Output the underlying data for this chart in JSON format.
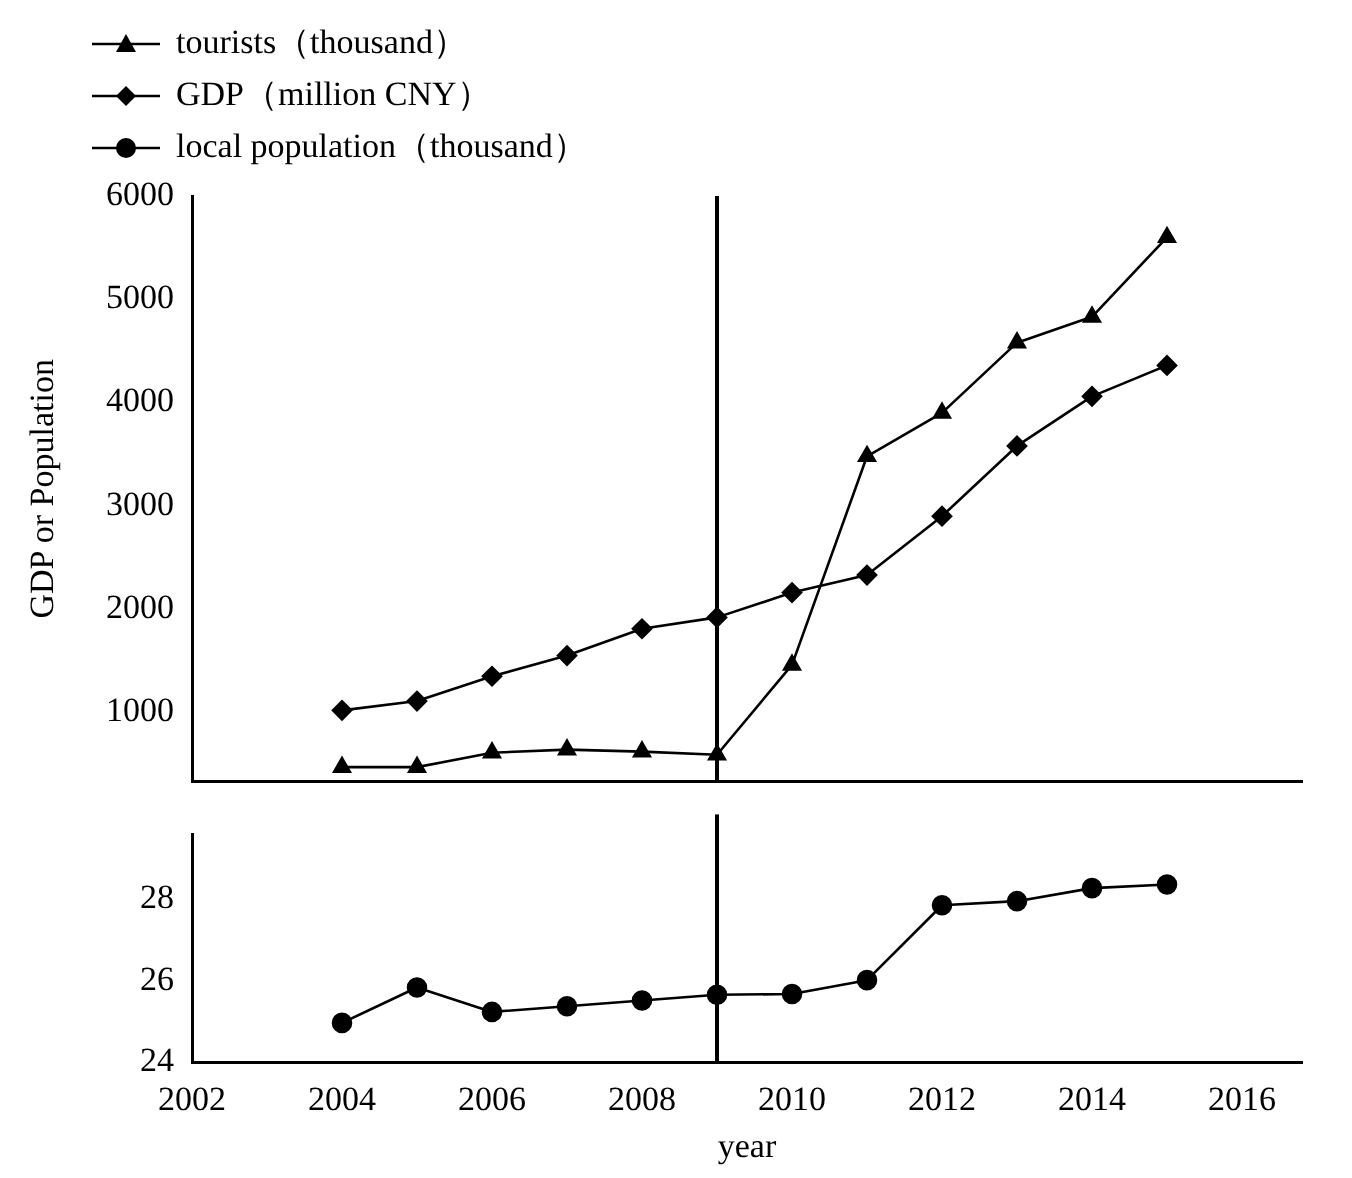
{
  "chart_data": [
    {
      "type": "line",
      "ylabel": "GDP or Population",
      "x": [
        2004,
        2005,
        2006,
        2007,
        2008,
        2009,
        2010,
        2011,
        2012,
        2013,
        2014,
        2015
      ],
      "series": [
        {
          "name": "tourists（thousand）",
          "color": "#000000",
          "marker": "triangle",
          "values": [
            470,
            470,
            610,
            640,
            620,
            590,
            1460,
            3480,
            3900,
            4580,
            4830,
            5600
          ]
        },
        {
          "name": "GDP（million CNY）",
          "color": "#000000",
          "marker": "diamond",
          "values": [
            1020,
            1110,
            1350,
            1550,
            1810,
            1920,
            2160,
            2330,
            2900,
            3580,
            4060,
            4360
          ]
        }
      ],
      "ylim": [
        330,
        6000
      ],
      "yticks": [
        1000,
        2000,
        3000,
        4000,
        5000,
        6000
      ],
      "xlim": [
        2002,
        2016.8
      ],
      "xticks": [
        2002,
        2004,
        2006,
        2008,
        2010,
        2012,
        2014,
        2016
      ],
      "tick_labels": "y",
      "ref_lines": [
        {
          "axis": "x",
          "value": 2009,
          "color": "#000000"
        }
      ],
      "grid": false,
      "legend": "top left"
    },
    {
      "type": "line",
      "xlabel": "year",
      "x": [
        2004,
        2005,
        2006,
        2007,
        2008,
        2009,
        2010,
        2011,
        2012,
        2013,
        2014,
        2015
      ],
      "series": [
        {
          "name": "local population（thousand）",
          "color": "#000000",
          "marker": "circle",
          "values": [
            24.97,
            25.84,
            25.24,
            25.38,
            25.52,
            25.66,
            25.68,
            26.02,
            27.86,
            27.96,
            28.28,
            28.37
          ]
        }
      ],
      "xlim": [
        2002,
        2016.8
      ],
      "xticks": [
        2002,
        2004,
        2006,
        2008,
        2010,
        2012,
        2014,
        2016
      ],
      "ylim": [
        24,
        29.6
      ],
      "yticks": [
        24,
        26,
        28
      ],
      "ref_lines": [
        {
          "axis": "x",
          "value": 2009,
          "color": "#000000"
        }
      ],
      "grid": false
    }
  ]
}
